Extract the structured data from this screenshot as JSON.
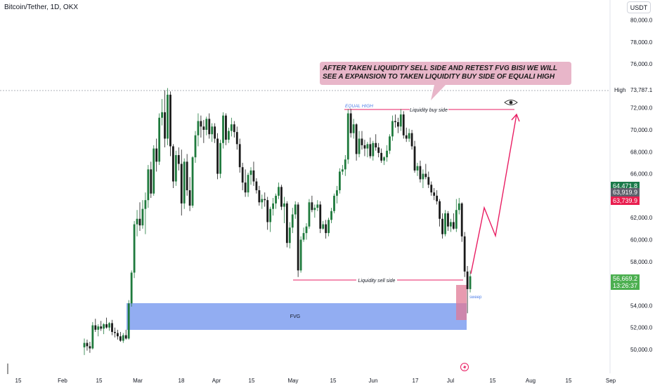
{
  "header": {
    "symbol_title": "Bitcoin/Tether, 1D, OKX",
    "currency_button": "USDT"
  },
  "price_axis": {
    "ticks": [
      "80,000.0",
      "78,000.0",
      "76,000.0",
      "72,000.0",
      "70,000.0",
      "68,000.0",
      "66,000.0",
      "62,000.0",
      "60,000.0",
      "58,000.0",
      "54,000.0",
      "52,000.0",
      "50,000.0"
    ],
    "high_label": "High",
    "high_value": "73,787.1",
    "tag_green": "64,471.8",
    "tag_gray": "63,919.9",
    "tag_red": "63,739.9",
    "last_price": "56,669.2",
    "countdown": "13:26:37"
  },
  "time_axis": {
    "labels": [
      "15",
      "Feb",
      "15",
      "Mar",
      "18",
      "Apr",
      "15",
      "May",
      "15",
      "Jun",
      "17",
      "Jul",
      "15",
      "Aug",
      "15",
      "Sep"
    ]
  },
  "annotations": {
    "callout": "AFTER TAKEN LIQUIDITY SELL SIDE AND RETEST FVG BISI WE WILL SEE A EXPANSION TO TAKEN LIQUIDITY BUY SIDE OF EQUALI HIGH",
    "equal_high": "EQUAL HIGH",
    "liq_buy": "Liquidity buy side",
    "liq_sell": "Liquidity sell side",
    "fvg": "FVG",
    "sweep": "sweep"
  },
  "colors": {
    "up": "#1f7a3d",
    "down": "#1a1a1a",
    "accent_pink": "#e91e63",
    "fvg_blue": "#7f9ff0",
    "callout_bg": "#e8b6c9",
    "last_green": "#26a69a"
  },
  "chart_data": {
    "type": "candlestick",
    "symbol": "Bitcoin/Tether",
    "ylim": [
      49000,
      81500
    ],
    "ohlc": [
      [
        50200,
        51000,
        49500,
        50600
      ],
      [
        50600,
        50900,
        49900,
        50300
      ],
      [
        50300,
        50700,
        49700,
        50100
      ],
      [
        50100,
        52500,
        50000,
        52200
      ],
      [
        52200,
        52800,
        51600,
        51800
      ],
      [
        51800,
        52300,
        51200,
        52100
      ],
      [
        52100,
        52600,
        51700,
        51900
      ],
      [
        51900,
        52400,
        51400,
        52300
      ],
      [
        52300,
        52900,
        51900,
        52000
      ],
      [
        52000,
        52500,
        51700,
        52400
      ],
      [
        52400,
        52700,
        51300,
        51600
      ],
      [
        51600,
        52000,
        51100,
        51500
      ],
      [
        51500,
        51800,
        50900,
        51200
      ],
      [
        51200,
        51600,
        50700,
        50800
      ],
      [
        50800,
        51500,
        50600,
        51300
      ],
      [
        51300,
        51800,
        50900,
        51000
      ],
      [
        51000,
        54500,
        50900,
        54200
      ],
      [
        54200,
        57200,
        53900,
        57000
      ],
      [
        57000,
        61700,
        56500,
        61400
      ],
      [
        61400,
        62700,
        60300,
        61900
      ],
      [
        61900,
        63400,
        60800,
        61300
      ],
      [
        61300,
        63600,
        61000,
        62800
      ],
      [
        62800,
        64300,
        60500,
        63600
      ],
      [
        63600,
        66800,
        62900,
        66400
      ],
      [
        66400,
        67100,
        63800,
        64200
      ],
      [
        64200,
        68600,
        64000,
        68300
      ],
      [
        68300,
        69200,
        66200,
        67100
      ],
      [
        67100,
        71500,
        66800,
        71100
      ],
      [
        71100,
        72800,
        70400,
        71600
      ],
      [
        71600,
        73600,
        68400,
        69200
      ],
      [
        69200,
        73800,
        68600,
        73200
      ],
      [
        73200,
        73500,
        67600,
        68500
      ],
      [
        68500,
        68700,
        64700,
        65300
      ],
      [
        65300,
        68100,
        64900,
        67700
      ],
      [
        67700,
        68400,
        66300,
        66900
      ],
      [
        66900,
        68200,
        62200,
        63300
      ],
      [
        63300,
        67400,
        62800,
        67100
      ],
      [
        67100,
        67800,
        64000,
        64500
      ],
      [
        64500,
        65700,
        62600,
        63100
      ],
      [
        63100,
        67600,
        62900,
        67500
      ],
      [
        67500,
        69900,
        67000,
        69500
      ],
      [
        69500,
        71500,
        68500,
        70800
      ],
      [
        70800,
        71300,
        69300,
        70300
      ],
      [
        70300,
        70900,
        68800,
        70000
      ],
      [
        70000,
        71200,
        69500,
        71000
      ],
      [
        71000,
        71500,
        69200,
        69600
      ],
      [
        69600,
        70600,
        68900,
        70300
      ],
      [
        70300,
        70600,
        68800,
        69200
      ],
      [
        69200,
        69700,
        65500,
        66000
      ],
      [
        66000,
        69100,
        65600,
        68800
      ],
      [
        68800,
        71600,
        68300,
        71300
      ],
      [
        71300,
        71500,
        68600,
        69100
      ],
      [
        69100,
        70200,
        68800,
        69900
      ],
      [
        69900,
        71100,
        69400,
        70500
      ],
      [
        70500,
        70800,
        69300,
        69800
      ],
      [
        69800,
        70300,
        68200,
        68700
      ],
      [
        68700,
        69200,
        66100,
        66600
      ],
      [
        66600,
        67000,
        64500,
        65200
      ],
      [
        65200,
        66400,
        63900,
        64300
      ],
      [
        64300,
        66100,
        63900,
        65900
      ],
      [
        65900,
        66600,
        65000,
        66300
      ],
      [
        66300,
        67100,
        64900,
        65300
      ],
      [
        65300,
        65600,
        64200,
        64500
      ],
      [
        64500,
        64900,
        63100,
        63400
      ],
      [
        63400,
        64100,
        62800,
        63700
      ],
      [
        63700,
        64300,
        63000,
        63600
      ],
      [
        63600,
        63900,
        60900,
        61600
      ],
      [
        61600,
        63000,
        60700,
        62800
      ],
      [
        62800,
        63800,
        62200,
        63300
      ],
      [
        63300,
        64200,
        62800,
        64000
      ],
      [
        64000,
        65200,
        63700,
        64800
      ],
      [
        64800,
        65000,
        62700,
        63000
      ],
      [
        63000,
        63900,
        61500,
        63300
      ],
      [
        63300,
        63500,
        59300,
        59700
      ],
      [
        59700,
        61600,
        59200,
        61100
      ],
      [
        61100,
        62900,
        60600,
        62300
      ],
      [
        62300,
        63500,
        61900,
        63200
      ],
      [
        63200,
        63400,
        56600,
        57200
      ],
      [
        57200,
        60300,
        57000,
        60000
      ],
      [
        60000,
        61100,
        59800,
        60600
      ],
      [
        60600,
        61500,
        60000,
        61200
      ],
      [
        61200,
        63700,
        61000,
        63400
      ],
      [
        63400,
        64000,
        62500,
        62700
      ],
      [
        62700,
        63200,
        62000,
        62900
      ],
      [
        62900,
        63600,
        62600,
        63200
      ],
      [
        63200,
        63500,
        60600,
        61000
      ],
      [
        61000,
        61700,
        60900,
        61400
      ],
      [
        61400,
        61800,
        60100,
        60600
      ],
      [
        60600,
        62000,
        60300,
        61800
      ],
      [
        61800,
        62900,
        61500,
        62600
      ],
      [
        62600,
        64200,
        62400,
        64000
      ],
      [
        64000,
        64900,
        63300,
        64500
      ],
      [
        64500,
        66500,
        64200,
        66200
      ],
      [
        66200,
        66800,
        65900,
        66400
      ],
      [
        66400,
        67700,
        65800,
        67300
      ],
      [
        67300,
        71900,
        66900,
        71500
      ],
      [
        71500,
        71900,
        69300,
        69700
      ],
      [
        69700,
        71000,
        69200,
        70500
      ],
      [
        70500,
        70600,
        67200,
        67800
      ],
      [
        67800,
        69900,
        67500,
        69200
      ],
      [
        69200,
        69900,
        68200,
        68600
      ],
      [
        68600,
        69100,
        67600,
        68300
      ],
      [
        68300,
        68900,
        67500,
        68700
      ],
      [
        68700,
        69300,
        67400,
        67600
      ],
      [
        67600,
        69000,
        67200,
        68800
      ],
      [
        68800,
        69600,
        68100,
        68400
      ],
      [
        68400,
        68800,
        67500,
        67900
      ],
      [
        67900,
        68300,
        67000,
        67200
      ],
      [
        67200,
        67600,
        66800,
        67500
      ],
      [
        67500,
        68600,
        67100,
        68100
      ],
      [
        68100,
        69600,
        67800,
        69400
      ],
      [
        69400,
        71300,
        69000,
        70800
      ],
      [
        70800,
        71400,
        70200,
        70700
      ],
      [
        70700,
        71100,
        69700,
        70300
      ],
      [
        70300,
        71900,
        69900,
        71400
      ],
      [
        71400,
        71700,
        69200,
        69500
      ],
      [
        69500,
        70200,
        68900,
        69200
      ],
      [
        69200,
        70100,
        68900,
        69700
      ],
      [
        69700,
        70000,
        68200,
        68500
      ],
      [
        68500,
        69000,
        66100,
        66300
      ],
      [
        66300,
        67000,
        65800,
        66700
      ],
      [
        66700,
        67200,
        65200,
        65500
      ],
      [
        65500,
        66400,
        64700,
        66000
      ],
      [
        66000,
        66900,
        65500,
        65700
      ],
      [
        65700,
        66200,
        64700,
        65000
      ],
      [
        65000,
        65300,
        64000,
        64300
      ],
      [
        64300,
        64700,
        63600,
        64000
      ],
      [
        64000,
        64500,
        63200,
        63500
      ],
      [
        63500,
        63700,
        61200,
        61900
      ],
      [
        61900,
        62400,
        60100,
        60500
      ],
      [
        60500,
        62700,
        60300,
        62400
      ],
      [
        62400,
        62600,
        60800,
        61200
      ],
      [
        61200,
        61900,
        60700,
        61600
      ],
      [
        61600,
        62400,
        60900,
        61000
      ],
      [
        61000,
        63700,
        60700,
        62700
      ],
      [
        62700,
        63800,
        62300,
        63300
      ],
      [
        63300,
        63400,
        59800,
        60300
      ],
      [
        60300,
        60700,
        56600,
        57100
      ],
      [
        57100,
        57600,
        53300,
        55500
      ],
      [
        55500,
        57200,
        55200,
        56669
      ]
    ]
  }
}
